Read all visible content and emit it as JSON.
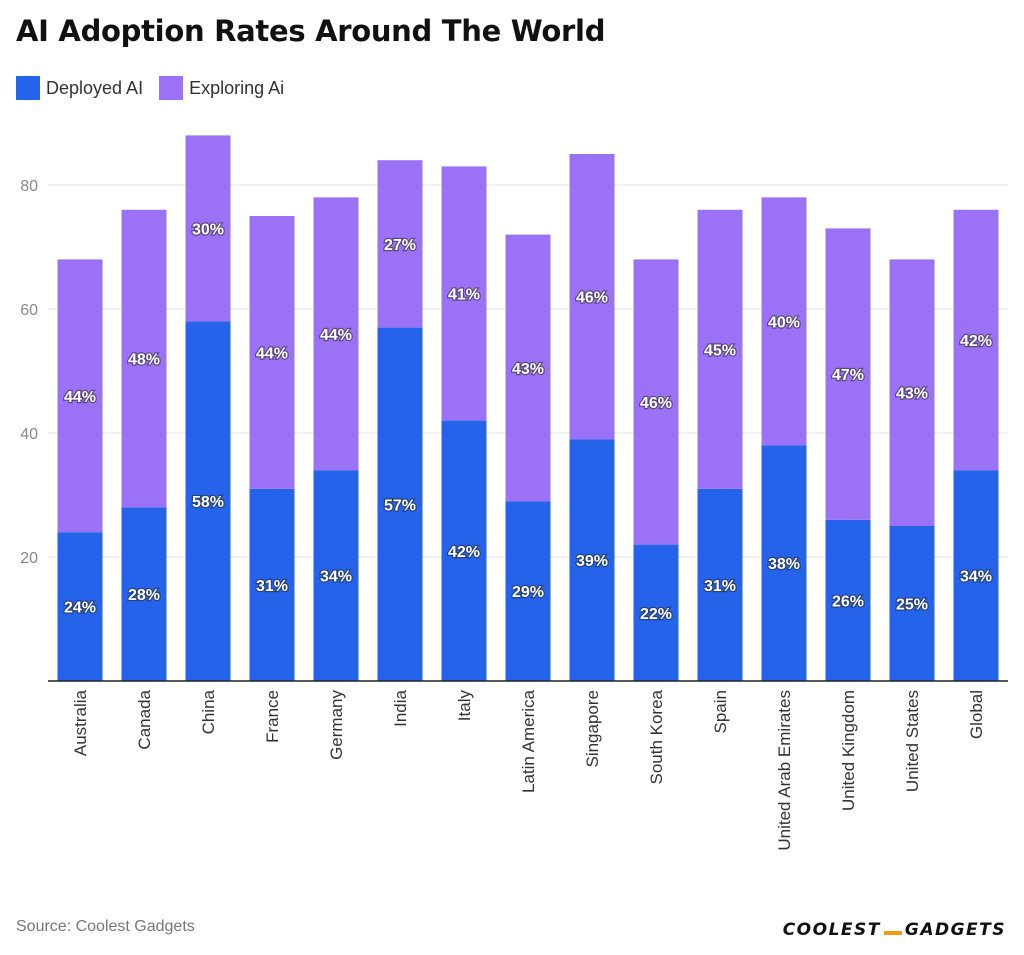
{
  "header": {
    "title": "AI Adoption Rates Around The World"
  },
  "legend": [
    {
      "label": "Deployed AI",
      "color": "#2563eb"
    },
    {
      "label": "Exploring Ai",
      "color": "#9b72f5"
    }
  ],
  "footer": {
    "source": "Source: Coolest Gadgets",
    "brand_part1": "COOLEST",
    "brand_part2": "GADGETS"
  },
  "chart_data": {
    "type": "bar",
    "stacked": true,
    "title": "AI Adoption Rates Around The World",
    "categories": [
      "Australia",
      "Canada",
      "China",
      "France",
      "Germany",
      "India",
      "Italy",
      "Latin America",
      "Singapore",
      "South Korea",
      "Spain",
      "United Arab Emirates",
      "United Kingdom",
      "United States",
      "Global"
    ],
    "series": [
      {
        "name": "Deployed AI",
        "color": "#2563eb",
        "values": [
          24,
          28,
          58,
          31,
          34,
          57,
          42,
          29,
          39,
          22,
          31,
          38,
          26,
          25,
          34
        ]
      },
      {
        "name": "Exploring Ai",
        "color": "#9b72f5",
        "values": [
          44,
          48,
          30,
          44,
          44,
          27,
          41,
          43,
          46,
          46,
          45,
          40,
          47,
          43,
          42
        ]
      }
    ],
    "label_suffix": "%",
    "yticks": [
      20,
      40,
      60,
      80
    ],
    "ylim": [
      0,
      95
    ],
    "xlabel": "",
    "ylabel": "",
    "grid": true,
    "legend_position": "top-left"
  }
}
